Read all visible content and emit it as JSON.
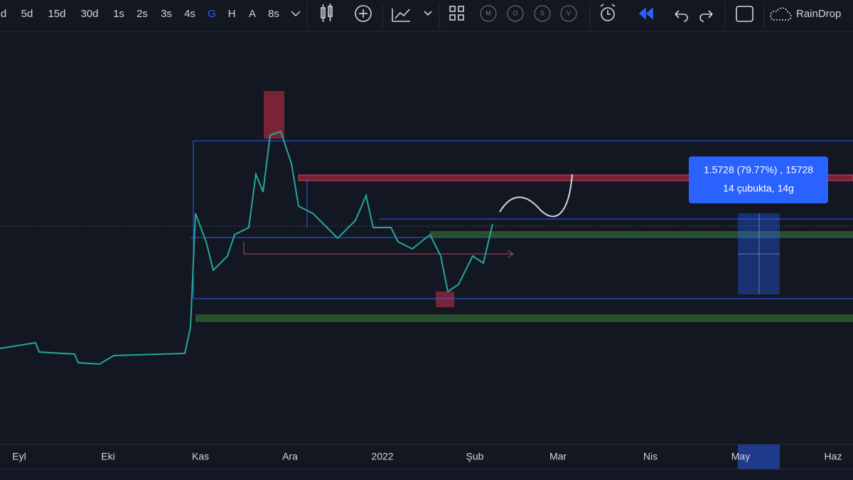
{
  "toolbar": {
    "intervals": [
      "d",
      "5d",
      "15d",
      "30d",
      "1s",
      "2s",
      "3s",
      "4s",
      "G",
      "H",
      "A",
      "8s"
    ],
    "indicators": [
      "M",
      "O",
      "S",
      "V"
    ],
    "symbol": "RainDrop"
  },
  "tooltip": {
    "line1": "1.5728 (79.77%) , 15728",
    "line2": "14 çubukta, 14g"
  },
  "time_axis": {
    "labels": [
      "Eyl",
      "Eki",
      "Kas",
      "Ara",
      "2022",
      "Şub",
      "Mar",
      "Nis",
      "May",
      "Haz"
    ]
  }
}
